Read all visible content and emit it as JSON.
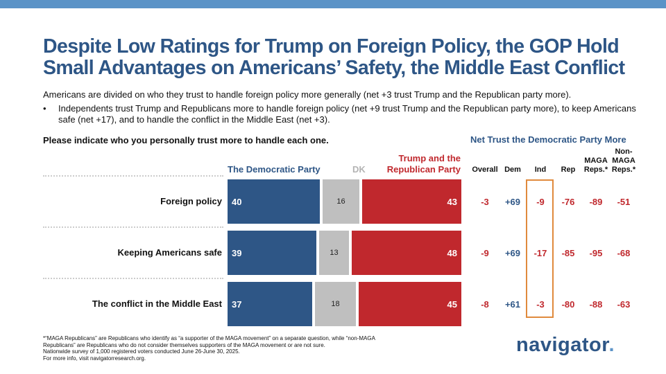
{
  "colors": {
    "topbar": "#5b93c7",
    "title": "#2e5686",
    "dem": "#2e5686",
    "dk": "#bfbfbf",
    "rep": "#c0282d",
    "ind_box": "#e08a3c"
  },
  "title": {
    "line1": "Despite Low Ratings for Trump on Foreign Policy, the GOP Hold",
    "line2": "Small Advantages on Americans’ Safety, the Middle East Conflict"
  },
  "subtitle": "Americans are divided on who they trust to handle foreign policy more generally (net +3 trust Trump and the Republican party more).",
  "bullet": "Independents trust Trump and Republicans more to handle foreign policy (net +9 trust Trump and the Republican party more), to keep Americans safe (net +17), and to handle the conflict in the Middle East (net +3).",
  "bullet_marker": "•",
  "question": "Please indicate who you personally trust more to handle each one.",
  "net_header": "Net Trust the Democratic Party More",
  "chart_data": {
    "type": "bar",
    "orientation": "horizontal-stacked",
    "title": "Please indicate who you personally trust more to handle each one.",
    "categories": [
      "Foreign policy",
      "Keeping Americans safe",
      "The conflict in the Middle East"
    ],
    "series": [
      {
        "name": "The Democratic Party",
        "values": [
          40,
          39,
          37
        ],
        "color": "#2e5686"
      },
      {
        "name": "DK",
        "values": [
          16,
          13,
          18
        ],
        "color": "#bfbfbf"
      },
      {
        "name": "Trump and the Republican Party",
        "values": [
          43,
          48,
          45
        ],
        "color": "#c0282d"
      }
    ],
    "legend": {
      "dem": "The Democratic Party",
      "dk": "DK",
      "rep_line1": "Trump and the",
      "rep_line2": "Republican Party"
    },
    "net_table": {
      "title": "Net Trust the Democratic Party More",
      "columns": [
        {
          "key": "overall",
          "line1": "",
          "line2": "Overall"
        },
        {
          "key": "dem",
          "line1": "",
          "line2": "Dem"
        },
        {
          "key": "ind",
          "line1": "",
          "line2": "Ind"
        },
        {
          "key": "rep",
          "line1": "",
          "line2": "Rep"
        },
        {
          "key": "maga",
          "line1": "MAGA",
          "line2": "Reps.*"
        },
        {
          "key": "nonmaga",
          "line0": "Non-",
          "line1": "MAGA",
          "line2": "Reps.*"
        }
      ],
      "rows": [
        [
          "-3",
          "+69",
          "-9",
          "-76",
          "-89",
          "-51"
        ],
        [
          "-9",
          "+69",
          "-17",
          "-85",
          "-95",
          "-68"
        ],
        [
          "-8",
          "+61",
          "-3",
          "-80",
          "-88",
          "-63"
        ]
      ],
      "highlighted_column": "Ind"
    }
  },
  "footnotes": [
    "*“MAGA Republicans” are Republicans who identify as “a supporter of the MAGA movement” on a separate question, while “non-MAGA",
    "Republicans” are Republicans who do not consider themselves supporters of the MAGA movement or are not sure.",
    "Nationwide survey of 1,000 registered voters conducted June 26-June 30, 2025.",
    "For more info, visit navigatorresearch.org."
  ],
  "logo": {
    "text": "navigator",
    "dot": "."
  }
}
